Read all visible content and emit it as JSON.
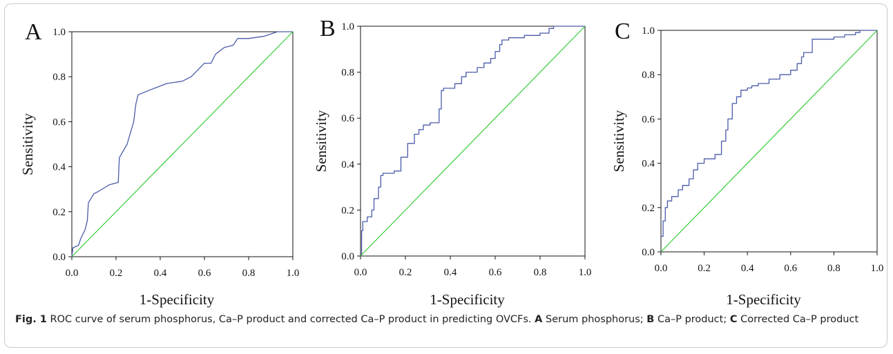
{
  "figure": {
    "caption_label": "Fig. 1",
    "caption_text": "ROC curve of serum phosphorus, Ca–P product and corrected Ca–P product in predicting OVCFs.",
    "legend_items": [
      {
        "key": "A",
        "text": "Serum phosphorus;"
      },
      {
        "key": "B",
        "text": "Ca–P product;"
      },
      {
        "key": "C",
        "text": "Corrected Ca–P product"
      }
    ]
  },
  "colors": {
    "roc_curve": "#4a5aa8",
    "reference_line": "#33cc33",
    "axis": "#111111"
  },
  "chart_data": [
    {
      "type": "line",
      "panel": "A",
      "xlabel": "1-Specificity",
      "ylabel": "Sensitivity",
      "xlim": [
        0,
        1
      ],
      "ylim": [
        0,
        1
      ],
      "xticks": [
        "0.0",
        "0.2",
        "0.4",
        "0.6",
        "0.8",
        "1.0"
      ],
      "yticks": [
        "0.0",
        "0.2",
        "0.4",
        "0.6",
        "0.8",
        "1.0"
      ],
      "grid": false,
      "series": [
        {
          "style": "smooth",
          "x": [
            0,
            0.005,
            0.03,
            0.04,
            0.06,
            0.07,
            0.075,
            0.1,
            0.12,
            0.17,
            0.21,
            0.215,
            0.25,
            0.28,
            0.29,
            0.3,
            0.35,
            0.43,
            0.5,
            0.54,
            0.6,
            0.63,
            0.65,
            0.69,
            0.73,
            0.75,
            0.8,
            0.87,
            0.93,
            1.0
          ],
          "y": [
            0,
            0.04,
            0.05,
            0.08,
            0.12,
            0.16,
            0.24,
            0.28,
            0.29,
            0.32,
            0.33,
            0.44,
            0.5,
            0.6,
            0.68,
            0.72,
            0.74,
            0.77,
            0.78,
            0.8,
            0.86,
            0.86,
            0.9,
            0.93,
            0.94,
            0.97,
            0.97,
            0.98,
            1.0,
            1.0
          ]
        },
        {
          "style": "reference",
          "x": [
            0,
            1
          ],
          "y": [
            0,
            1
          ]
        }
      ]
    },
    {
      "type": "line",
      "panel": "B",
      "xlabel": "1-Specificity",
      "ylabel": "Sensitivity",
      "xlim": [
        0,
        1
      ],
      "ylim": [
        0,
        1
      ],
      "xticks": [
        "0.0",
        "0.2",
        "0.4",
        "0.6",
        "0.8",
        "1.0"
      ],
      "yticks": [
        "0.0",
        "0.2",
        "0.4",
        "0.6",
        "0.8",
        "1.0"
      ],
      "grid": false,
      "series": [
        {
          "style": "step",
          "x": [
            0,
            0.005,
            0.01,
            0.03,
            0.05,
            0.06,
            0.08,
            0.09,
            0.1,
            0.15,
            0.18,
            0.21,
            0.24,
            0.26,
            0.28,
            0.31,
            0.35,
            0.36,
            0.37,
            0.42,
            0.45,
            0.47,
            0.52,
            0.55,
            0.58,
            0.6,
            0.62,
            0.63,
            0.66,
            0.73,
            0.8,
            0.84,
            0.86,
            1.0
          ],
          "y": [
            0,
            0.11,
            0.15,
            0.17,
            0.2,
            0.25,
            0.3,
            0.35,
            0.36,
            0.37,
            0.43,
            0.49,
            0.53,
            0.55,
            0.57,
            0.58,
            0.64,
            0.72,
            0.73,
            0.75,
            0.78,
            0.8,
            0.82,
            0.84,
            0.86,
            0.89,
            0.92,
            0.94,
            0.95,
            0.96,
            0.97,
            0.99,
            1.0,
            1.0
          ]
        },
        {
          "style": "reference",
          "x": [
            0,
            1
          ],
          "y": [
            0,
            1
          ]
        }
      ]
    },
    {
      "type": "line",
      "panel": "C",
      "xlabel": "1-Specificity",
      "ylabel": "Sensitivity",
      "xlim": [
        0,
        1
      ],
      "ylim": [
        0,
        1
      ],
      "xticks": [
        "0.0",
        "0.2",
        "0.4",
        "0.6",
        "0.8",
        "1.0"
      ],
      "yticks": [
        "0.0",
        "0.2",
        "0.4",
        "0.6",
        "0.8",
        "1.0"
      ],
      "grid": false,
      "series": [
        {
          "style": "step",
          "x": [
            0,
            0.01,
            0.02,
            0.03,
            0.05,
            0.08,
            0.1,
            0.13,
            0.15,
            0.17,
            0.2,
            0.25,
            0.28,
            0.3,
            0.31,
            0.33,
            0.35,
            0.37,
            0.4,
            0.42,
            0.45,
            0.5,
            0.55,
            0.6,
            0.63,
            0.65,
            0.66,
            0.7,
            0.75,
            0.8,
            0.85,
            0.9,
            0.92,
            1.0
          ],
          "y": [
            0.07,
            0.14,
            0.2,
            0.23,
            0.25,
            0.28,
            0.3,
            0.33,
            0.37,
            0.4,
            0.42,
            0.44,
            0.5,
            0.55,
            0.6,
            0.67,
            0.7,
            0.73,
            0.74,
            0.75,
            0.76,
            0.78,
            0.8,
            0.82,
            0.85,
            0.88,
            0.9,
            0.96,
            0.96,
            0.97,
            0.98,
            0.99,
            1.0,
            1.0
          ]
        },
        {
          "style": "reference",
          "x": [
            0,
            1
          ],
          "y": [
            0,
            1
          ]
        }
      ]
    }
  ]
}
